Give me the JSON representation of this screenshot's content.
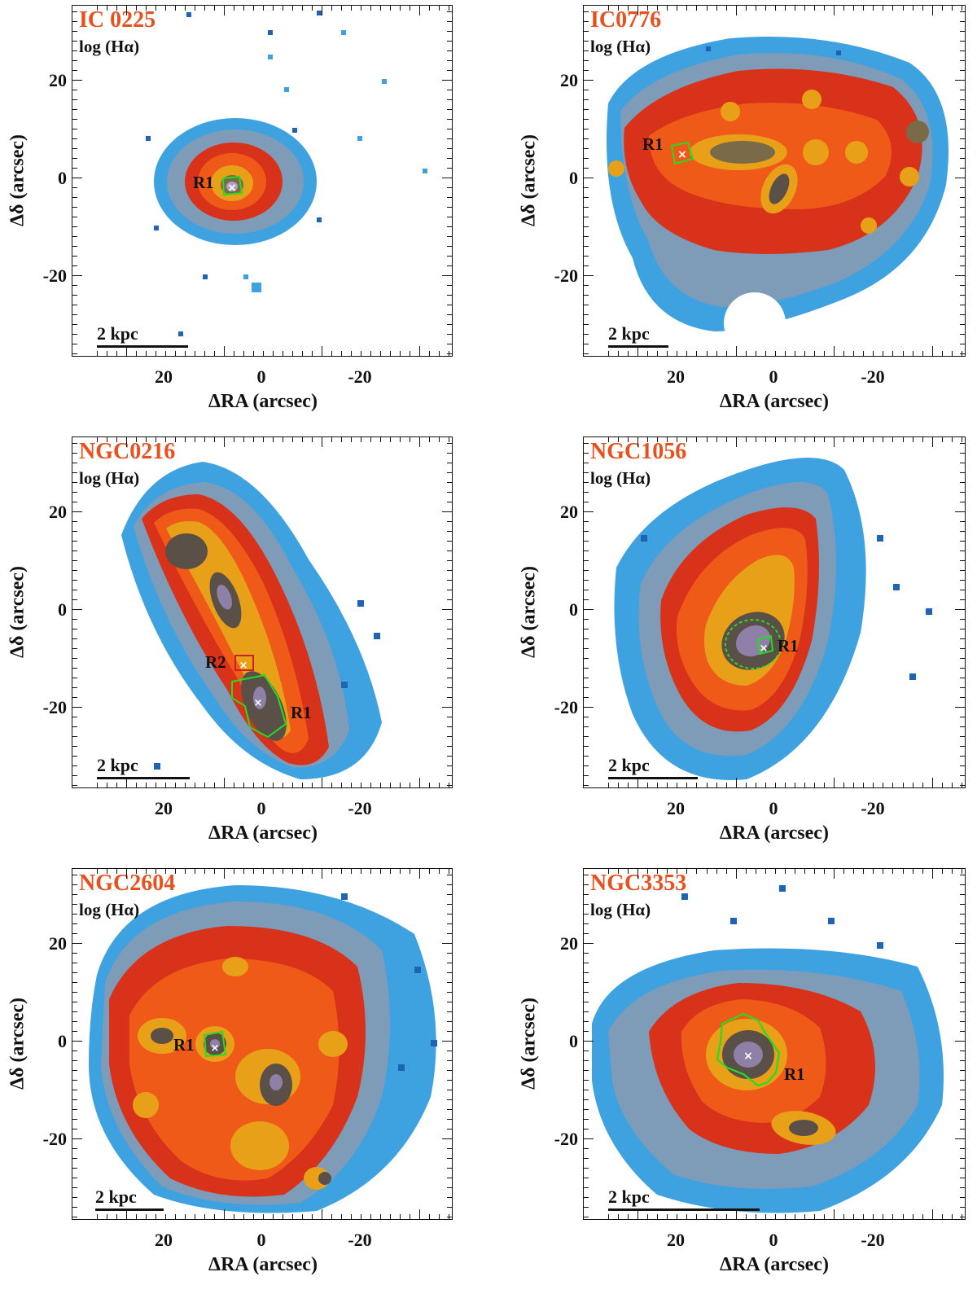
{
  "figure": {
    "xlabel": "ΔRA (arcsec)",
    "ylabel": "Δδ (arcsec)",
    "quantity": "log (Hα)",
    "scale_label": "2 kpc",
    "xticks": [
      "20",
      "0",
      "-20"
    ],
    "yticks": [
      "20",
      "0",
      "-20"
    ]
  },
  "panels": [
    {
      "name": "IC 0225",
      "regions": [
        "R1"
      ]
    },
    {
      "name": "IC0776",
      "regions": [
        "R1"
      ]
    },
    {
      "name": "NGC0216",
      "regions": [
        "R2",
        "R1"
      ]
    },
    {
      "name": "NGC1056",
      "regions": [
        "R1"
      ]
    },
    {
      "name": "NGC2604",
      "regions": [
        "R1"
      ]
    },
    {
      "name": "NGC3353",
      "regions": [
        "R1"
      ]
    }
  ],
  "colors": {
    "name_color": "#e8501e",
    "contour_color": "#22dd22",
    "r2_contour_color": "#cc2222"
  }
}
